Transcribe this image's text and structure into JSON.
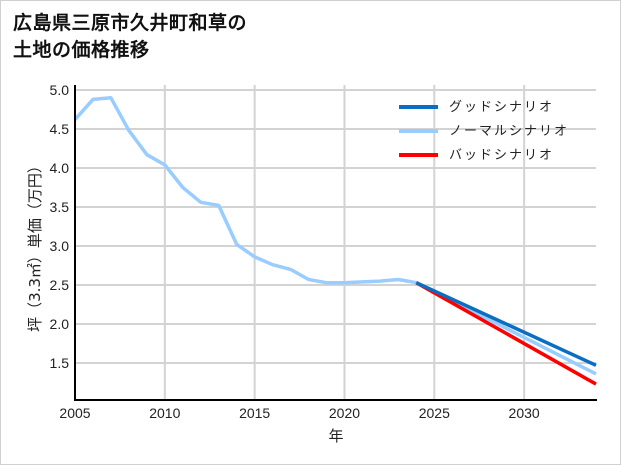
{
  "chart_data": {
    "type": "line",
    "title": "広島県三原市久井町和草の\n土地の価格推移",
    "xlabel": "年",
    "ylabel": "坪（3.3㎡）単価（万円）",
    "xlim": [
      2005,
      2034
    ],
    "ylim": [
      1.03,
      5.0
    ],
    "x_ticks": [
      2005,
      2010,
      2015,
      2020,
      2025,
      2030
    ],
    "y_ticks": [
      1.5,
      2.0,
      2.5,
      3.0,
      3.5,
      4.0,
      4.5,
      5.0
    ],
    "y_tick_labels": [
      "1.5",
      "2.0",
      "2.5",
      "3.0",
      "3.5",
      "4.0",
      "4.5",
      "5.0"
    ],
    "grid": true,
    "legend_position": "upper right",
    "series": [
      {
        "name": "グッドシナリオ",
        "color": "#0a6fc2",
        "x": [
          2024,
          2034
        ],
        "values": [
          2.53,
          1.47
        ]
      },
      {
        "name": "ノーマルシナリオ",
        "color": "#99ccff",
        "x": [
          2005,
          2006,
          2007,
          2008,
          2009,
          2010,
          2011,
          2012,
          2013,
          2014,
          2015,
          2016,
          2017,
          2018,
          2019,
          2020,
          2021,
          2022,
          2023,
          2024,
          2034
        ],
        "values": [
          4.62,
          4.88,
          4.9,
          4.48,
          4.17,
          4.04,
          3.75,
          3.56,
          3.52,
          3.02,
          2.86,
          2.76,
          2.7,
          2.57,
          2.53,
          2.53,
          2.54,
          2.55,
          2.57,
          2.53,
          1.36
        ]
      },
      {
        "name": "バッドシナリオ",
        "color": "#ff0000",
        "x": [
          2024,
          2034
        ],
        "values": [
          2.53,
          1.23
        ]
      }
    ]
  },
  "legend": {
    "items": [
      {
        "label": "グッドシナリオ",
        "color": "#0a6fc2"
      },
      {
        "label": "ノーマルシナリオ",
        "color": "#99ccff"
      },
      {
        "label": "バッドシナリオ",
        "color": "#ff0000"
      }
    ]
  },
  "colors": {
    "grid": "#d3d3d3",
    "axis": "#000000",
    "frame": "#d0d0d0"
  }
}
